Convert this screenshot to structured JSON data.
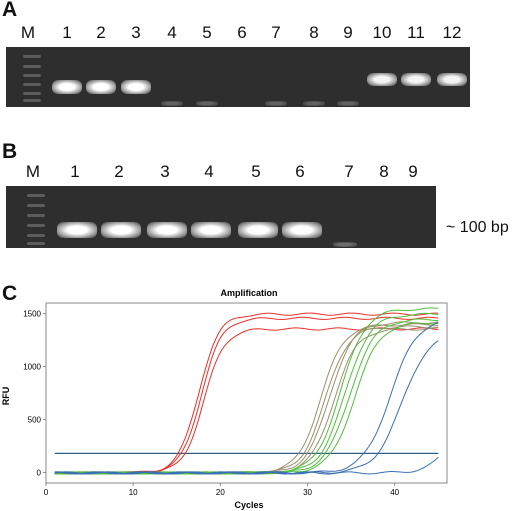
{
  "panels": {
    "a": {
      "letter": "A",
      "marker_label": "M",
      "lanes": [
        "1",
        "2",
        "3",
        "4",
        "5",
        "6",
        "7",
        "8",
        "9",
        "10",
        "11",
        "12"
      ]
    },
    "b": {
      "letter": "B",
      "marker_label": "M",
      "lanes": [
        "1",
        "2",
        "3",
        "4",
        "5",
        "6",
        "7",
        "8",
        "9"
      ],
      "size_label": "~ 100 bp"
    },
    "c": {
      "letter": "C"
    }
  },
  "chart_data": {
    "type": "line",
    "title": "Amplification",
    "xlabel": "Cycles",
    "ylabel": "RFU",
    "xlim": [
      0,
      46
    ],
    "ylim": [
      -100,
      1600
    ],
    "xticks": [
      0,
      10,
      20,
      30,
      40
    ],
    "yticks": [
      0,
      500,
      1000,
      1500
    ],
    "threshold": 180,
    "series": [
      {
        "color": "#e8302a",
        "ct": 17.5,
        "plateau": 1500,
        "slope": 0.85
      },
      {
        "color": "#e8302a",
        "ct": 17.8,
        "plateau": 1460,
        "slope": 0.85
      },
      {
        "color": "#e8302a",
        "ct": 18.1,
        "plateau": 1360,
        "slope": 0.85
      },
      {
        "color": "#9b8f6c",
        "ct": 31.5,
        "plateau": 1400,
        "slope": 0.75
      },
      {
        "color": "#9b8f6c",
        "ct": 32.0,
        "plateau": 1380,
        "slope": 0.75
      },
      {
        "color": "#9b8f6c",
        "ct": 32.5,
        "plateau": 1420,
        "slope": 0.75
      },
      {
        "color": "#9b8f6c",
        "ct": 33.0,
        "plateau": 1360,
        "slope": 0.75
      },
      {
        "color": "#4fbf3a",
        "ct": 33.8,
        "plateau": 1550,
        "slope": 0.7
      },
      {
        "color": "#4fbf3a",
        "ct": 34.3,
        "plateau": 1500,
        "slope": 0.7
      },
      {
        "color": "#4fbf3a",
        "ct": 34.8,
        "plateau": 1450,
        "slope": 0.7
      },
      {
        "color": "#4fbf3a",
        "ct": 35.4,
        "plateau": 1420,
        "slope": 0.7
      },
      {
        "color": "#3a6fb5",
        "ct": 39.5,
        "plateau": 1460,
        "slope": 0.65
      },
      {
        "color": "#3a6fb5",
        "ct": 40.8,
        "plateau": 1320,
        "slope": 0.65
      },
      {
        "color": "#3a6fb5",
        "ct": 48.0,
        "plateau": 1300,
        "slope": 0.7
      }
    ]
  }
}
